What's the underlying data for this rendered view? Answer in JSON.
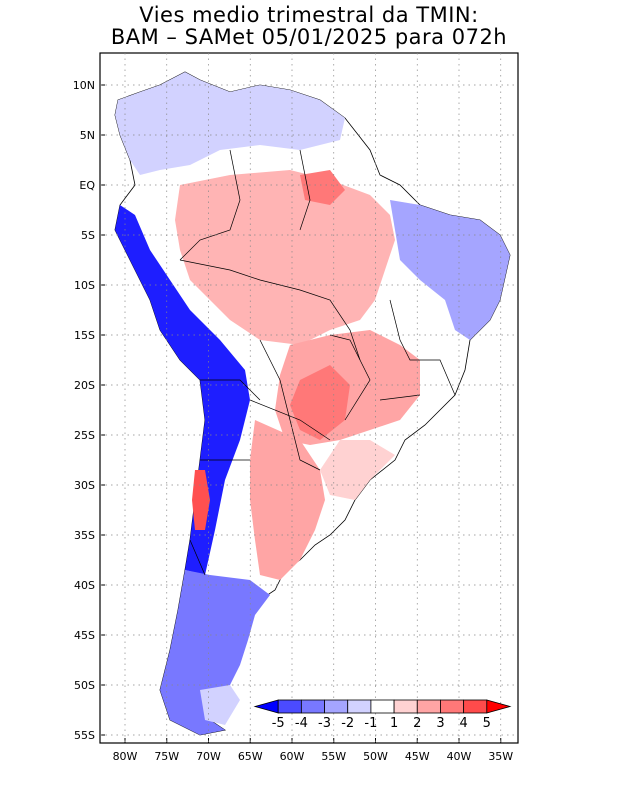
{
  "title": {
    "line1": "Vies medio trimestral da TMIN:",
    "line2": "BAM – SAMet 05/01/2025  para 072h"
  },
  "axes": {
    "lat_labels": [
      "10N",
      "5N",
      "EQ",
      "5S",
      "10S",
      "15S",
      "20S",
      "25S",
      "30S",
      "35S",
      "40S",
      "45S",
      "50S",
      "55S"
    ],
    "lon_labels": [
      "80W",
      "75W",
      "70W",
      "65W",
      "60W",
      "55W",
      "50W",
      "45W",
      "40W",
      "35W"
    ]
  },
  "colorbar": {
    "labels": [
      "-5",
      "-4",
      "-3",
      "-2",
      "-1",
      "1",
      "2",
      "3",
      "4",
      "5"
    ],
    "colors": [
      "#0000ff",
      "#4b4bff",
      "#7878ff",
      "#a5a5ff",
      "#d2d2ff",
      "#ffffff",
      "#ffd2d2",
      "#ffa5a5",
      "#ff7878",
      "#ff4b4b",
      "#ff0000"
    ]
  },
  "regions": [
    {
      "name": "colombia-venezuela-bias",
      "color": "#d2d2ff"
    },
    {
      "name": "amazon-warm-bias",
      "color": "#ffb4b4"
    },
    {
      "name": "northeast-brazil-cold-bias",
      "color": "#a5a5ff"
    },
    {
      "name": "andes-cold-bias",
      "color": "#1e1eff"
    },
    {
      "name": "paraguay-warm-bias",
      "color": "#ff7878"
    },
    {
      "name": "patagonia-cold-bias",
      "color": "#7878ff"
    }
  ]
}
